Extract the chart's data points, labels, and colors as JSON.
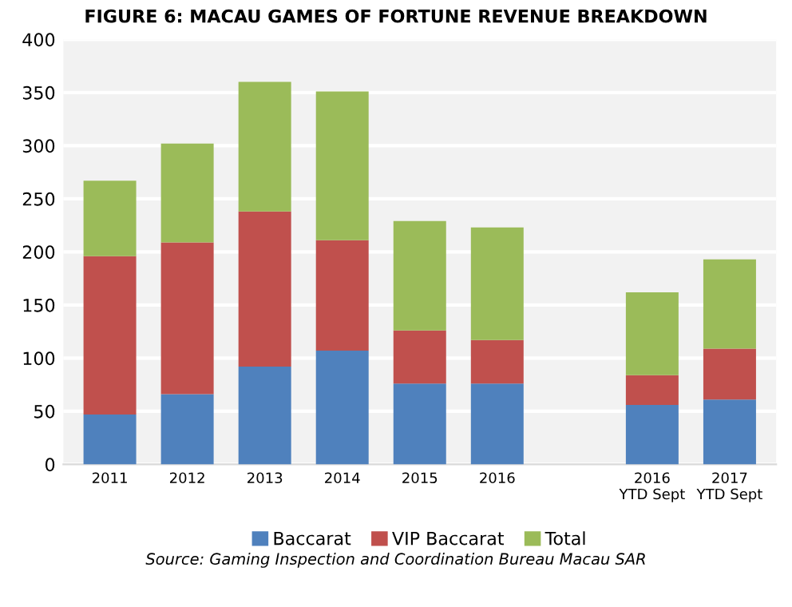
{
  "chart_data": {
    "type": "bar",
    "stacked": true,
    "title": "FIGURE 6: MACAU GAMES OF FORTUNE REVENUE BREAKDOWN",
    "categories": [
      "2011",
      "2012",
      "2013",
      "2014",
      "2015",
      "2016",
      null,
      "2016\nYTD Sept",
      "2017\nYTD Sept"
    ],
    "series": [
      {
        "name": "Baccarat",
        "color": "#4f81bd",
        "values": [
          47,
          66,
          92,
          107,
          76,
          76,
          null,
          56,
          61
        ]
      },
      {
        "name": "VIP Baccarat",
        "color": "#c0504d",
        "values": [
          149,
          143,
          146,
          104,
          50,
          41,
          null,
          28,
          48
        ]
      },
      {
        "name": "Total",
        "color": "#9bbb59",
        "values": [
          71,
          93,
          122,
          140,
          103,
          106,
          null,
          78,
          84
        ]
      }
    ],
    "ylim": [
      0,
      400
    ],
    "yticks": [
      0,
      50,
      100,
      150,
      200,
      250,
      300,
      350,
      400
    ],
    "grid": "y",
    "legend": "bottom",
    "annotations": [
      "Source: Gaming Inspection and Coordination Bureau Macau SAR"
    ]
  }
}
